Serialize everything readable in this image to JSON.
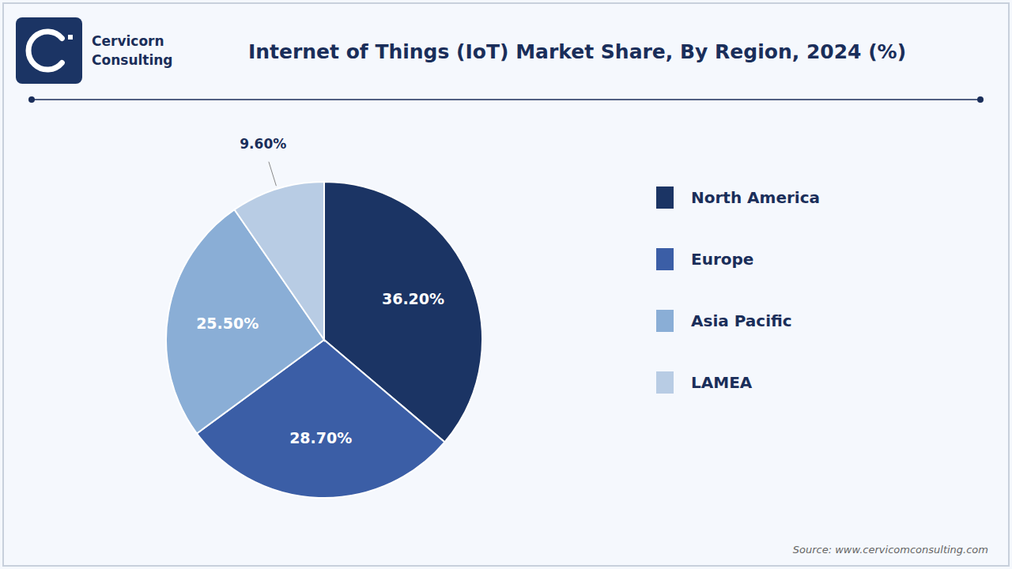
{
  "chart_data": {
    "type": "pie",
    "title": "Internet of Things (IoT) Market Share, By Region, 2024 (%)",
    "categories": [
      "North America",
      "Europe",
      "Asia Pacific",
      "LAMEA"
    ],
    "values": [
      36.2,
      28.7,
      25.5,
      9.6
    ],
    "value_labels": [
      "36.20%",
      "28.70%",
      "25.50%",
      "9.60%"
    ],
    "colors": [
      "#1b3464",
      "#3b5ea6",
      "#8aaed6",
      "#b8cce4"
    ],
    "data_labels": true,
    "legend": "right",
    "annotations": [
      "Cervicorn",
      "Consulting",
      "Source: www.cervicomconsulting.com"
    ]
  }
}
